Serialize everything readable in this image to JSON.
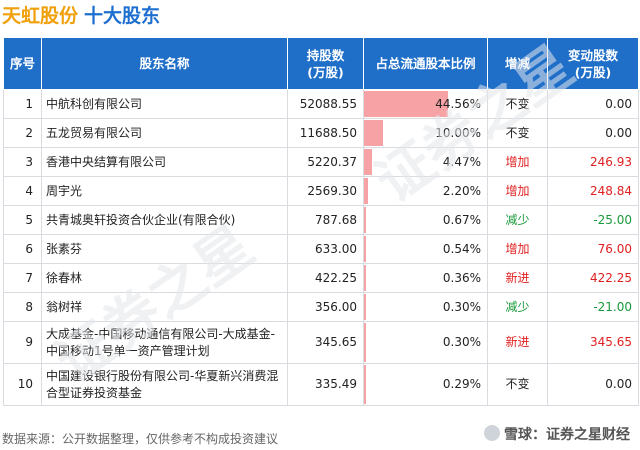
{
  "header": {
    "company": "天虹股份",
    "subtitle": "十大股东"
  },
  "columns": [
    "序号",
    "股东名称",
    "持股数\n(万股)",
    "占总流通股本比例",
    "增减",
    "变动股数\n(万股)"
  ],
  "rows": [
    {
      "idx": "1",
      "name": "中航科创有限公司",
      "shares": "52088.55",
      "ratio": "44.56%",
      "ratio_value": 44.56,
      "change": "不变",
      "change_type": "flat",
      "delta": "0.00"
    },
    {
      "idx": "2",
      "name": "五龙贸易有限公司",
      "shares": "11688.50",
      "ratio": "10.00%",
      "ratio_value": 10.0,
      "change": "不变",
      "change_type": "flat",
      "delta": "0.00"
    },
    {
      "idx": "3",
      "name": "香港中央结算有限公司",
      "shares": "5220.37",
      "ratio": "4.47%",
      "ratio_value": 4.47,
      "change": "增加",
      "change_type": "up",
      "delta": "246.93"
    },
    {
      "idx": "4",
      "name": "周宇光",
      "shares": "2569.30",
      "ratio": "2.20%",
      "ratio_value": 2.2,
      "change": "增加",
      "change_type": "up",
      "delta": "248.84"
    },
    {
      "idx": "5",
      "name": "共青城奥轩投资合伙企业(有限合伙)",
      "shares": "787.68",
      "ratio": "0.67%",
      "ratio_value": 0.67,
      "change": "减少",
      "change_type": "down",
      "delta": "-25.00"
    },
    {
      "idx": "6",
      "name": "张素芬",
      "shares": "633.00",
      "ratio": "0.54%",
      "ratio_value": 0.54,
      "change": "增加",
      "change_type": "up",
      "delta": "76.00"
    },
    {
      "idx": "7",
      "name": "徐春林",
      "shares": "422.25",
      "ratio": "0.36%",
      "ratio_value": 0.36,
      "change": "新进",
      "change_type": "up",
      "delta": "422.25"
    },
    {
      "idx": "8",
      "name": "翁树祥",
      "shares": "356.00",
      "ratio": "0.30%",
      "ratio_value": 0.3,
      "change": "减少",
      "change_type": "down",
      "delta": "-21.00"
    },
    {
      "idx": "9",
      "name": "大成基金-中国移动通信有限公司-大成基金-中国移动1号单一资产管理计划",
      "shares": "345.65",
      "ratio": "0.30%",
      "ratio_value": 0.3,
      "change": "新进",
      "change_type": "up",
      "delta": "345.65"
    },
    {
      "idx": "10",
      "name": "中国建设银行股份有限公司-华夏新兴消费混合型证券投资基金",
      "shares": "335.49",
      "ratio": "0.29%",
      "ratio_value": 0.29,
      "change": "不变",
      "change_type": "flat",
      "delta": "0.00"
    }
  ],
  "footer": {
    "source": "数据来源：公开数据整理，仅供参考不构成投资建议",
    "brand": "雪球：证券之星财经"
  },
  "watermark": "证券之星",
  "colors": {
    "header_bg": "#1f6fc9",
    "bar": "#f7a2a5",
    "up": "#e02020",
    "down": "#1a9a3a",
    "company": "#f0a00a",
    "subtitle": "#1d6fd0"
  }
}
